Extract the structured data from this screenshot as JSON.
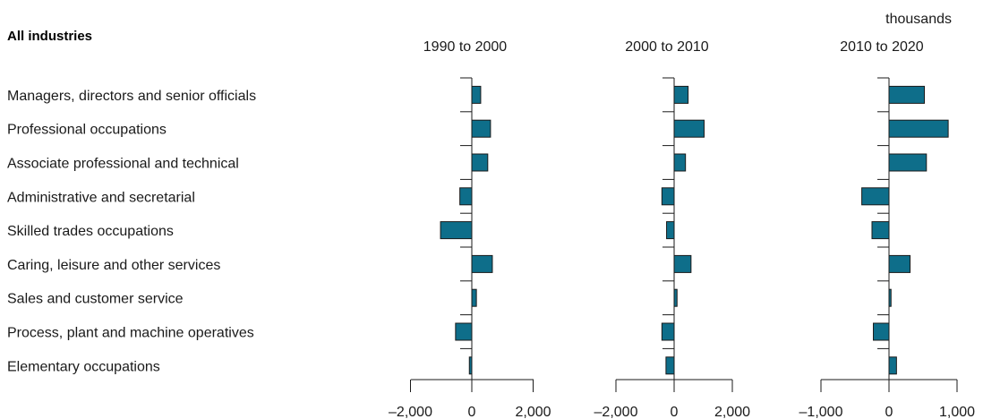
{
  "chart_data": {
    "type": "bar",
    "orientation": "horizontal",
    "title": "All industries",
    "units": "thousands",
    "bar_color": "#0e6e8a",
    "categories": [
      "Managers, directors and senior officials",
      "Professional occupations",
      "Associate professional and technical",
      "Administrative and secretarial",
      "Skilled trades occupations",
      "Caring, leisure and other services",
      "Sales and customer service",
      "Process, plant and machine operatives",
      "Elementary occupations"
    ],
    "panels": [
      {
        "name": "1990 to 2000",
        "xlim": [
          -2000,
          2000
        ],
        "ticks": [
          -2000,
          0,
          2000
        ],
        "tick_labels": [
          "–2,000",
          "0",
          "2,000"
        ],
        "values": [
          290,
          610,
          520,
          -390,
          -1020,
          670,
          150,
          -530,
          -80
        ]
      },
      {
        "name": "2000 to 2010",
        "xlim": [
          -2000,
          2000
        ],
        "ticks": [
          -2000,
          0,
          2000
        ],
        "tick_labels": [
          "–2,000",
          "0",
          "2,000"
        ],
        "values": [
          480,
          1030,
          390,
          -420,
          -260,
          580,
          100,
          -420,
          -280
        ]
      },
      {
        "name": "2010 to 2020",
        "xlim": [
          -1000,
          1000
        ],
        "ticks": [
          -1000,
          0,
          1000
        ],
        "tick_labels": [
          "–1,000",
          "0",
          "1,000"
        ],
        "values": [
          520,
          870,
          550,
          -400,
          -250,
          310,
          30,
          -230,
          110
        ]
      }
    ]
  }
}
